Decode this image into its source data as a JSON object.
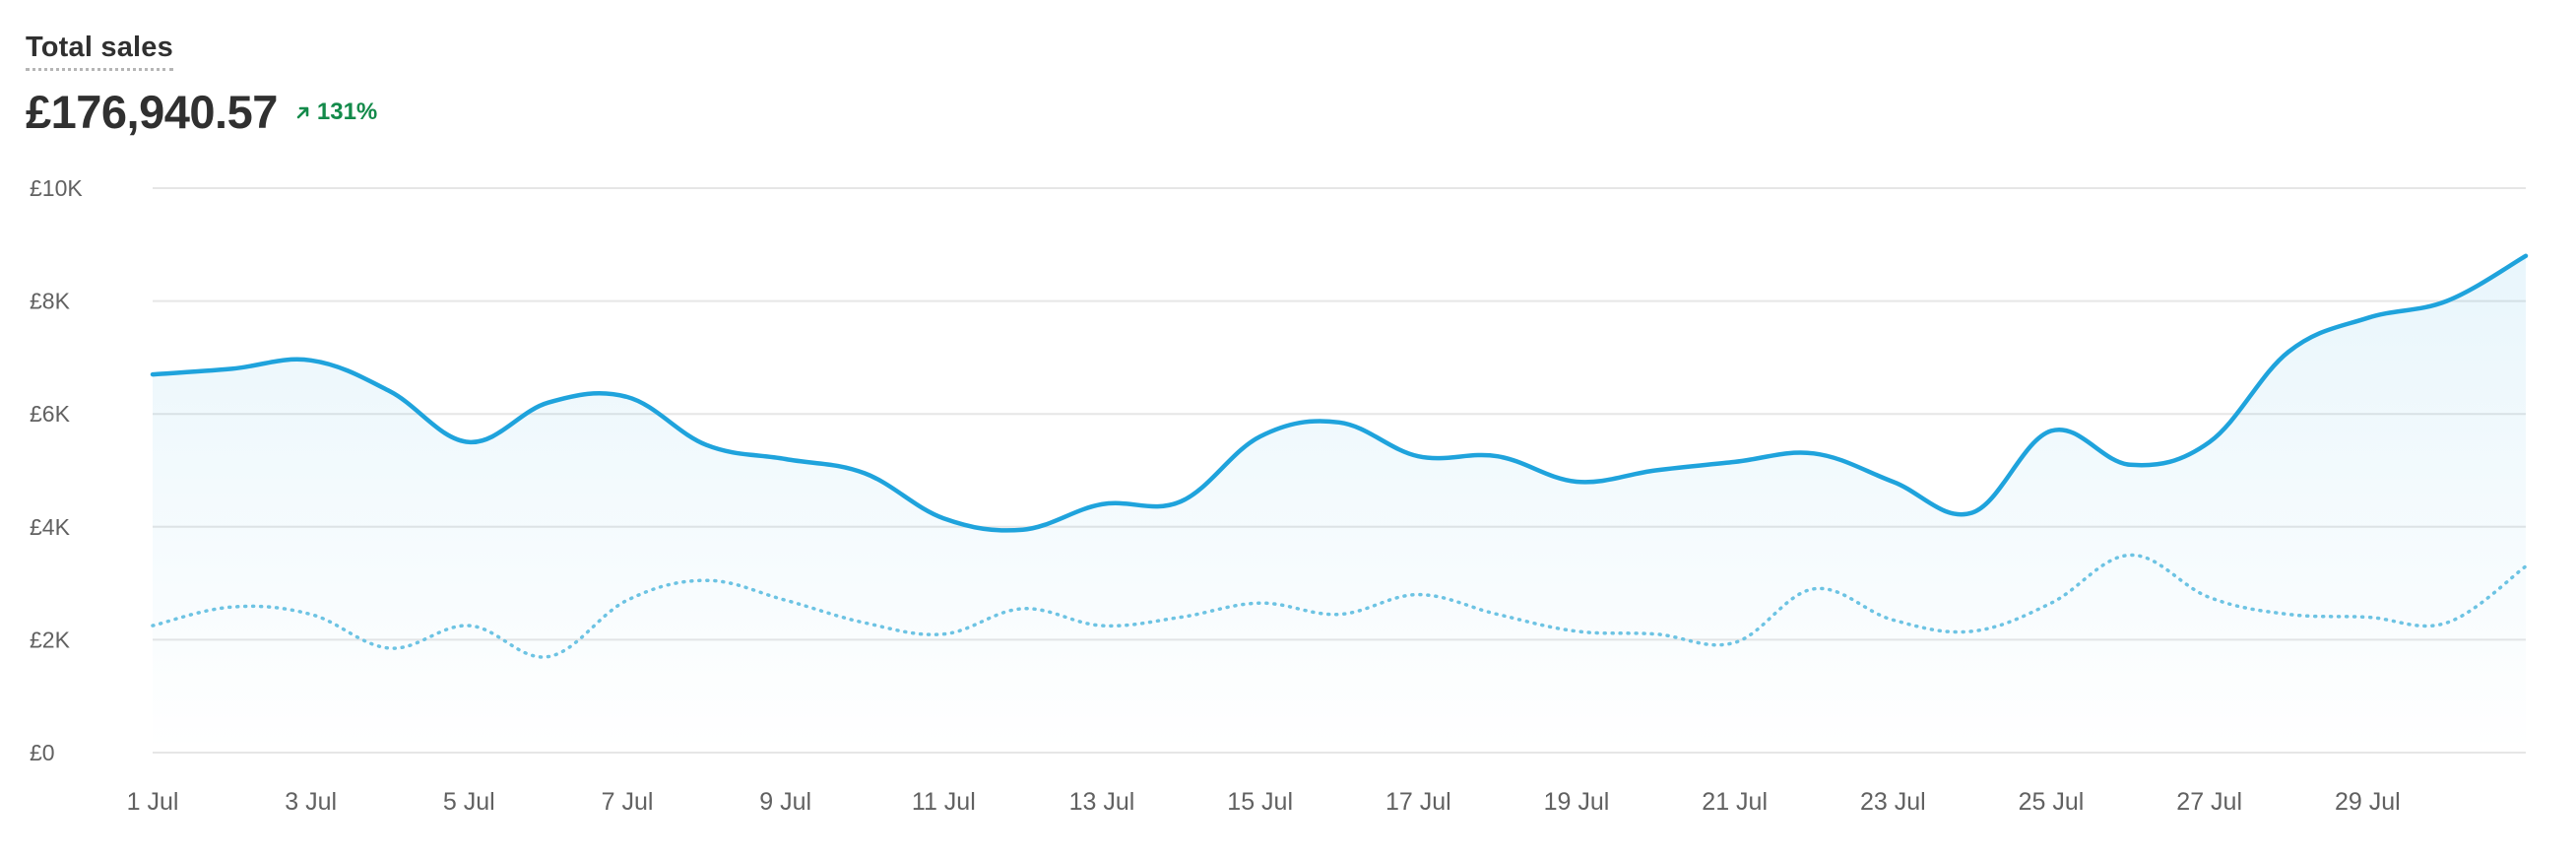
{
  "card": {
    "title": "Total sales",
    "total": "£176,940.57",
    "change": "131%"
  },
  "colors": {
    "primary": "#1fa3dc",
    "comparison": "#6fc4e3",
    "positive": "#138a4a",
    "grid": "#e6e6e6"
  },
  "chart_data": {
    "type": "line",
    "title": "Total sales",
    "xlabel": "",
    "ylabel": "",
    "ylim": [
      0,
      10000
    ],
    "yticks": [
      "£0",
      "£2K",
      "£4K",
      "£6K",
      "£8K",
      "£10K"
    ],
    "ytick_values": [
      0,
      2000,
      4000,
      6000,
      8000,
      10000
    ],
    "x": [
      1,
      2,
      3,
      4,
      5,
      6,
      7,
      8,
      9,
      10,
      11,
      12,
      13,
      14,
      15,
      16,
      17,
      18,
      19,
      20,
      21,
      22,
      23,
      24,
      25,
      26,
      27,
      28,
      29,
      30,
      31
    ],
    "xticks": [
      "1 Jul",
      "3 Jul",
      "5 Jul",
      "7 Jul",
      "9 Jul",
      "11 Jul",
      "13 Jul",
      "15 Jul",
      "17 Jul",
      "19 Jul",
      "21 Jul",
      "23 Jul",
      "25 Jul",
      "27 Jul",
      "29 Jul"
    ],
    "xtick_positions": [
      1,
      3,
      5,
      7,
      9,
      11,
      13,
      15,
      17,
      19,
      21,
      23,
      25,
      27,
      29
    ],
    "grid": true,
    "series": [
      {
        "style": "solid",
        "area": true,
        "values": [
          6700,
          6800,
          6950,
          6400,
          5500,
          6200,
          6300,
          5450,
          5200,
          4950,
          4150,
          3950,
          4400,
          4450,
          5600,
          5850,
          5250,
          5250,
          4800,
          5000,
          5150,
          5300,
          4800,
          4250,
          5700,
          5100,
          5500,
          7100,
          7700,
          8000,
          8800
        ]
      },
      {
        "style": "dotted",
        "area": false,
        "values": [
          2250,
          2580,
          2450,
          1850,
          2250,
          1700,
          2700,
          3050,
          2700,
          2300,
          2100,
          2550,
          2250,
          2400,
          2650,
          2450,
          2800,
          2450,
          2150,
          2100,
          1950,
          2900,
          2350,
          2150,
          2650,
          3500,
          2750,
          2450,
          2400,
          2300,
          3300
        ]
      }
    ]
  }
}
